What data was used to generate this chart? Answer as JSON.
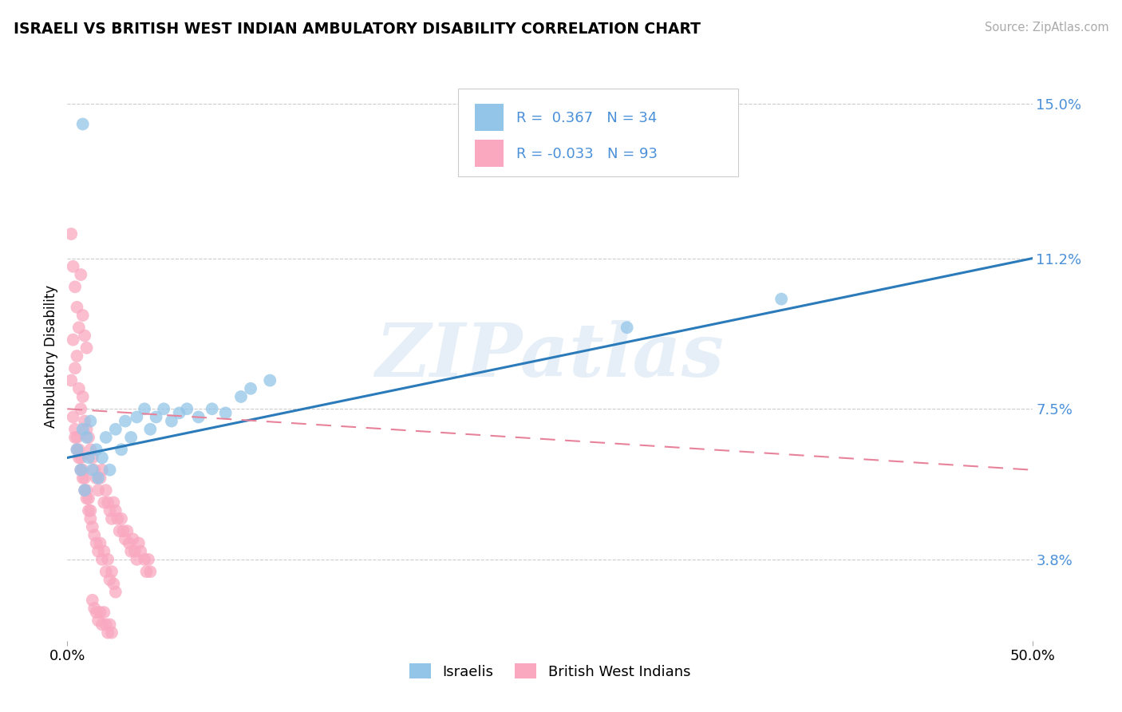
{
  "title": "ISRAELI VS BRITISH WEST INDIAN AMBULATORY DISABILITY CORRELATION CHART",
  "source_text": "Source: ZipAtlas.com",
  "ylabel": "Ambulatory Disability",
  "xmin": 0.0,
  "xmax": 0.5,
  "ymin": 0.018,
  "ymax": 0.158,
  "yticks": [
    0.038,
    0.075,
    0.112,
    0.15
  ],
  "ytick_labels": [
    "3.8%",
    "7.5%",
    "11.2%",
    "15.0%"
  ],
  "xticks": [
    0.0,
    0.5
  ],
  "xtick_labels": [
    "0.0%",
    "50.0%"
  ],
  "israeli_color": "#93c5e8",
  "bwi_color": "#f9a8c0",
  "trend_blue": "#2b7bba",
  "trend_pink": "#e8829a",
  "axis_label_color": "#4a90d9",
  "R_israeli": 0.367,
  "N_israeli": 34,
  "R_bwi": -0.033,
  "N_bwi": 93,
  "legend_label_1": "Israelis",
  "legend_label_2": "British West Indians",
  "watermark": "ZIPatlas",
  "isr_trend_x0": 0.0,
  "isr_trend_y0": 0.063,
  "isr_trend_x1": 0.5,
  "isr_trend_y1": 0.112,
  "bwi_trend_x0": 0.0,
  "bwi_trend_y0": 0.075,
  "bwi_trend_x1": 0.5,
  "bwi_trend_y1": 0.06,
  "israeli_points_x": [
    0.005,
    0.007,
    0.008,
    0.009,
    0.01,
    0.011,
    0.012,
    0.013,
    0.015,
    0.016,
    0.018,
    0.02,
    0.022,
    0.025,
    0.028,
    0.03,
    0.033,
    0.036,
    0.04,
    0.043,
    0.046,
    0.05,
    0.054,
    0.058,
    0.062,
    0.068,
    0.075,
    0.082,
    0.09,
    0.095,
    0.105,
    0.008,
    0.29,
    0.37
  ],
  "israeli_points_y": [
    0.065,
    0.06,
    0.07,
    0.055,
    0.068,
    0.063,
    0.072,
    0.06,
    0.065,
    0.058,
    0.063,
    0.068,
    0.06,
    0.07,
    0.065,
    0.072,
    0.068,
    0.073,
    0.075,
    0.07,
    0.073,
    0.075,
    0.072,
    0.074,
    0.075,
    0.073,
    0.075,
    0.074,
    0.078,
    0.08,
    0.082,
    0.145,
    0.095,
    0.102
  ],
  "bwi_points_x": [
    0.002,
    0.003,
    0.004,
    0.005,
    0.006,
    0.007,
    0.008,
    0.009,
    0.01,
    0.002,
    0.003,
    0.004,
    0.005,
    0.006,
    0.007,
    0.008,
    0.009,
    0.01,
    0.011,
    0.012,
    0.013,
    0.014,
    0.015,
    0.016,
    0.017,
    0.018,
    0.019,
    0.02,
    0.021,
    0.022,
    0.023,
    0.024,
    0.025,
    0.026,
    0.027,
    0.028,
    0.029,
    0.03,
    0.031,
    0.032,
    0.033,
    0.034,
    0.035,
    0.036,
    0.037,
    0.038,
    0.04,
    0.041,
    0.042,
    0.043,
    0.004,
    0.005,
    0.006,
    0.007,
    0.008,
    0.009,
    0.01,
    0.011,
    0.012,
    0.013,
    0.014,
    0.015,
    0.016,
    0.017,
    0.018,
    0.019,
    0.02,
    0.021,
    0.022,
    0.023,
    0.024,
    0.025,
    0.003,
    0.004,
    0.005,
    0.006,
    0.007,
    0.008,
    0.009,
    0.01,
    0.011,
    0.012,
    0.013,
    0.014,
    0.015,
    0.016,
    0.017,
    0.018,
    0.019,
    0.02,
    0.021,
    0.022,
    0.023
  ],
  "bwi_points_y": [
    0.118,
    0.11,
    0.105,
    0.1,
    0.095,
    0.108,
    0.098,
    0.093,
    0.09,
    0.082,
    0.092,
    0.085,
    0.088,
    0.08,
    0.075,
    0.078,
    0.072,
    0.07,
    0.068,
    0.065,
    0.063,
    0.06,
    0.058,
    0.055,
    0.058,
    0.06,
    0.052,
    0.055,
    0.052,
    0.05,
    0.048,
    0.052,
    0.05,
    0.048,
    0.045,
    0.048,
    0.045,
    0.043,
    0.045,
    0.042,
    0.04,
    0.043,
    0.04,
    0.038,
    0.042,
    0.04,
    0.038,
    0.035,
    0.038,
    0.035,
    0.068,
    0.065,
    0.063,
    0.06,
    0.058,
    0.055,
    0.053,
    0.05,
    0.048,
    0.046,
    0.044,
    0.042,
    0.04,
    0.042,
    0.038,
    0.04,
    0.035,
    0.038,
    0.033,
    0.035,
    0.032,
    0.03,
    0.073,
    0.07,
    0.068,
    0.065,
    0.063,
    0.06,
    0.058,
    0.055,
    0.053,
    0.05,
    0.028,
    0.026,
    0.025,
    0.023,
    0.025,
    0.022,
    0.025,
    0.022,
    0.02,
    0.022,
    0.02
  ]
}
